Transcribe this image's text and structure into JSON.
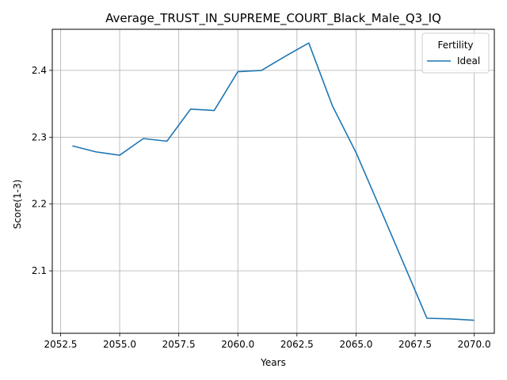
{
  "chart_data": {
    "type": "line",
    "title": "Average_TRUST_IN_SUPREME_COURT_Black_Male_Q3_IQ",
    "xlabel": "Years",
    "ylabel": "Score(1-3)",
    "xlim": [
      2052.15,
      2070.85
    ],
    "ylim": [
      2.0065,
      2.4615
    ],
    "xticks": [
      2052.5,
      2055.0,
      2057.5,
      2060.0,
      2062.5,
      2065.0,
      2067.5,
      2070.0
    ],
    "xtick_labels": [
      "2052.5",
      "2055.0",
      "2057.5",
      "2060.0",
      "2062.5",
      "2065.0",
      "2067.5",
      "2070.0"
    ],
    "yticks": [
      2.1,
      2.2,
      2.3,
      2.4
    ],
    "ytick_labels": [
      "2.1",
      "2.2",
      "2.3",
      "2.4"
    ],
    "grid": true,
    "legend": {
      "title": "Fertility",
      "placement": "top-right"
    },
    "series": [
      {
        "name": "Ideal",
        "color": "#1f77b4",
        "x": [
          2053,
          2054,
          2055,
          2056,
          2057,
          2058,
          2059,
          2060,
          2061,
          2062,
          2063,
          2064,
          2065,
          2066,
          2067,
          2068,
          2069,
          2070
        ],
        "y": [
          2.287,
          2.278,
          2.273,
          2.298,
          2.294,
          2.342,
          2.34,
          2.398,
          2.4,
          2.421,
          2.441,
          2.347,
          2.277,
          2.195,
          2.112,
          2.029,
          2.028,
          2.026
        ]
      }
    ]
  }
}
